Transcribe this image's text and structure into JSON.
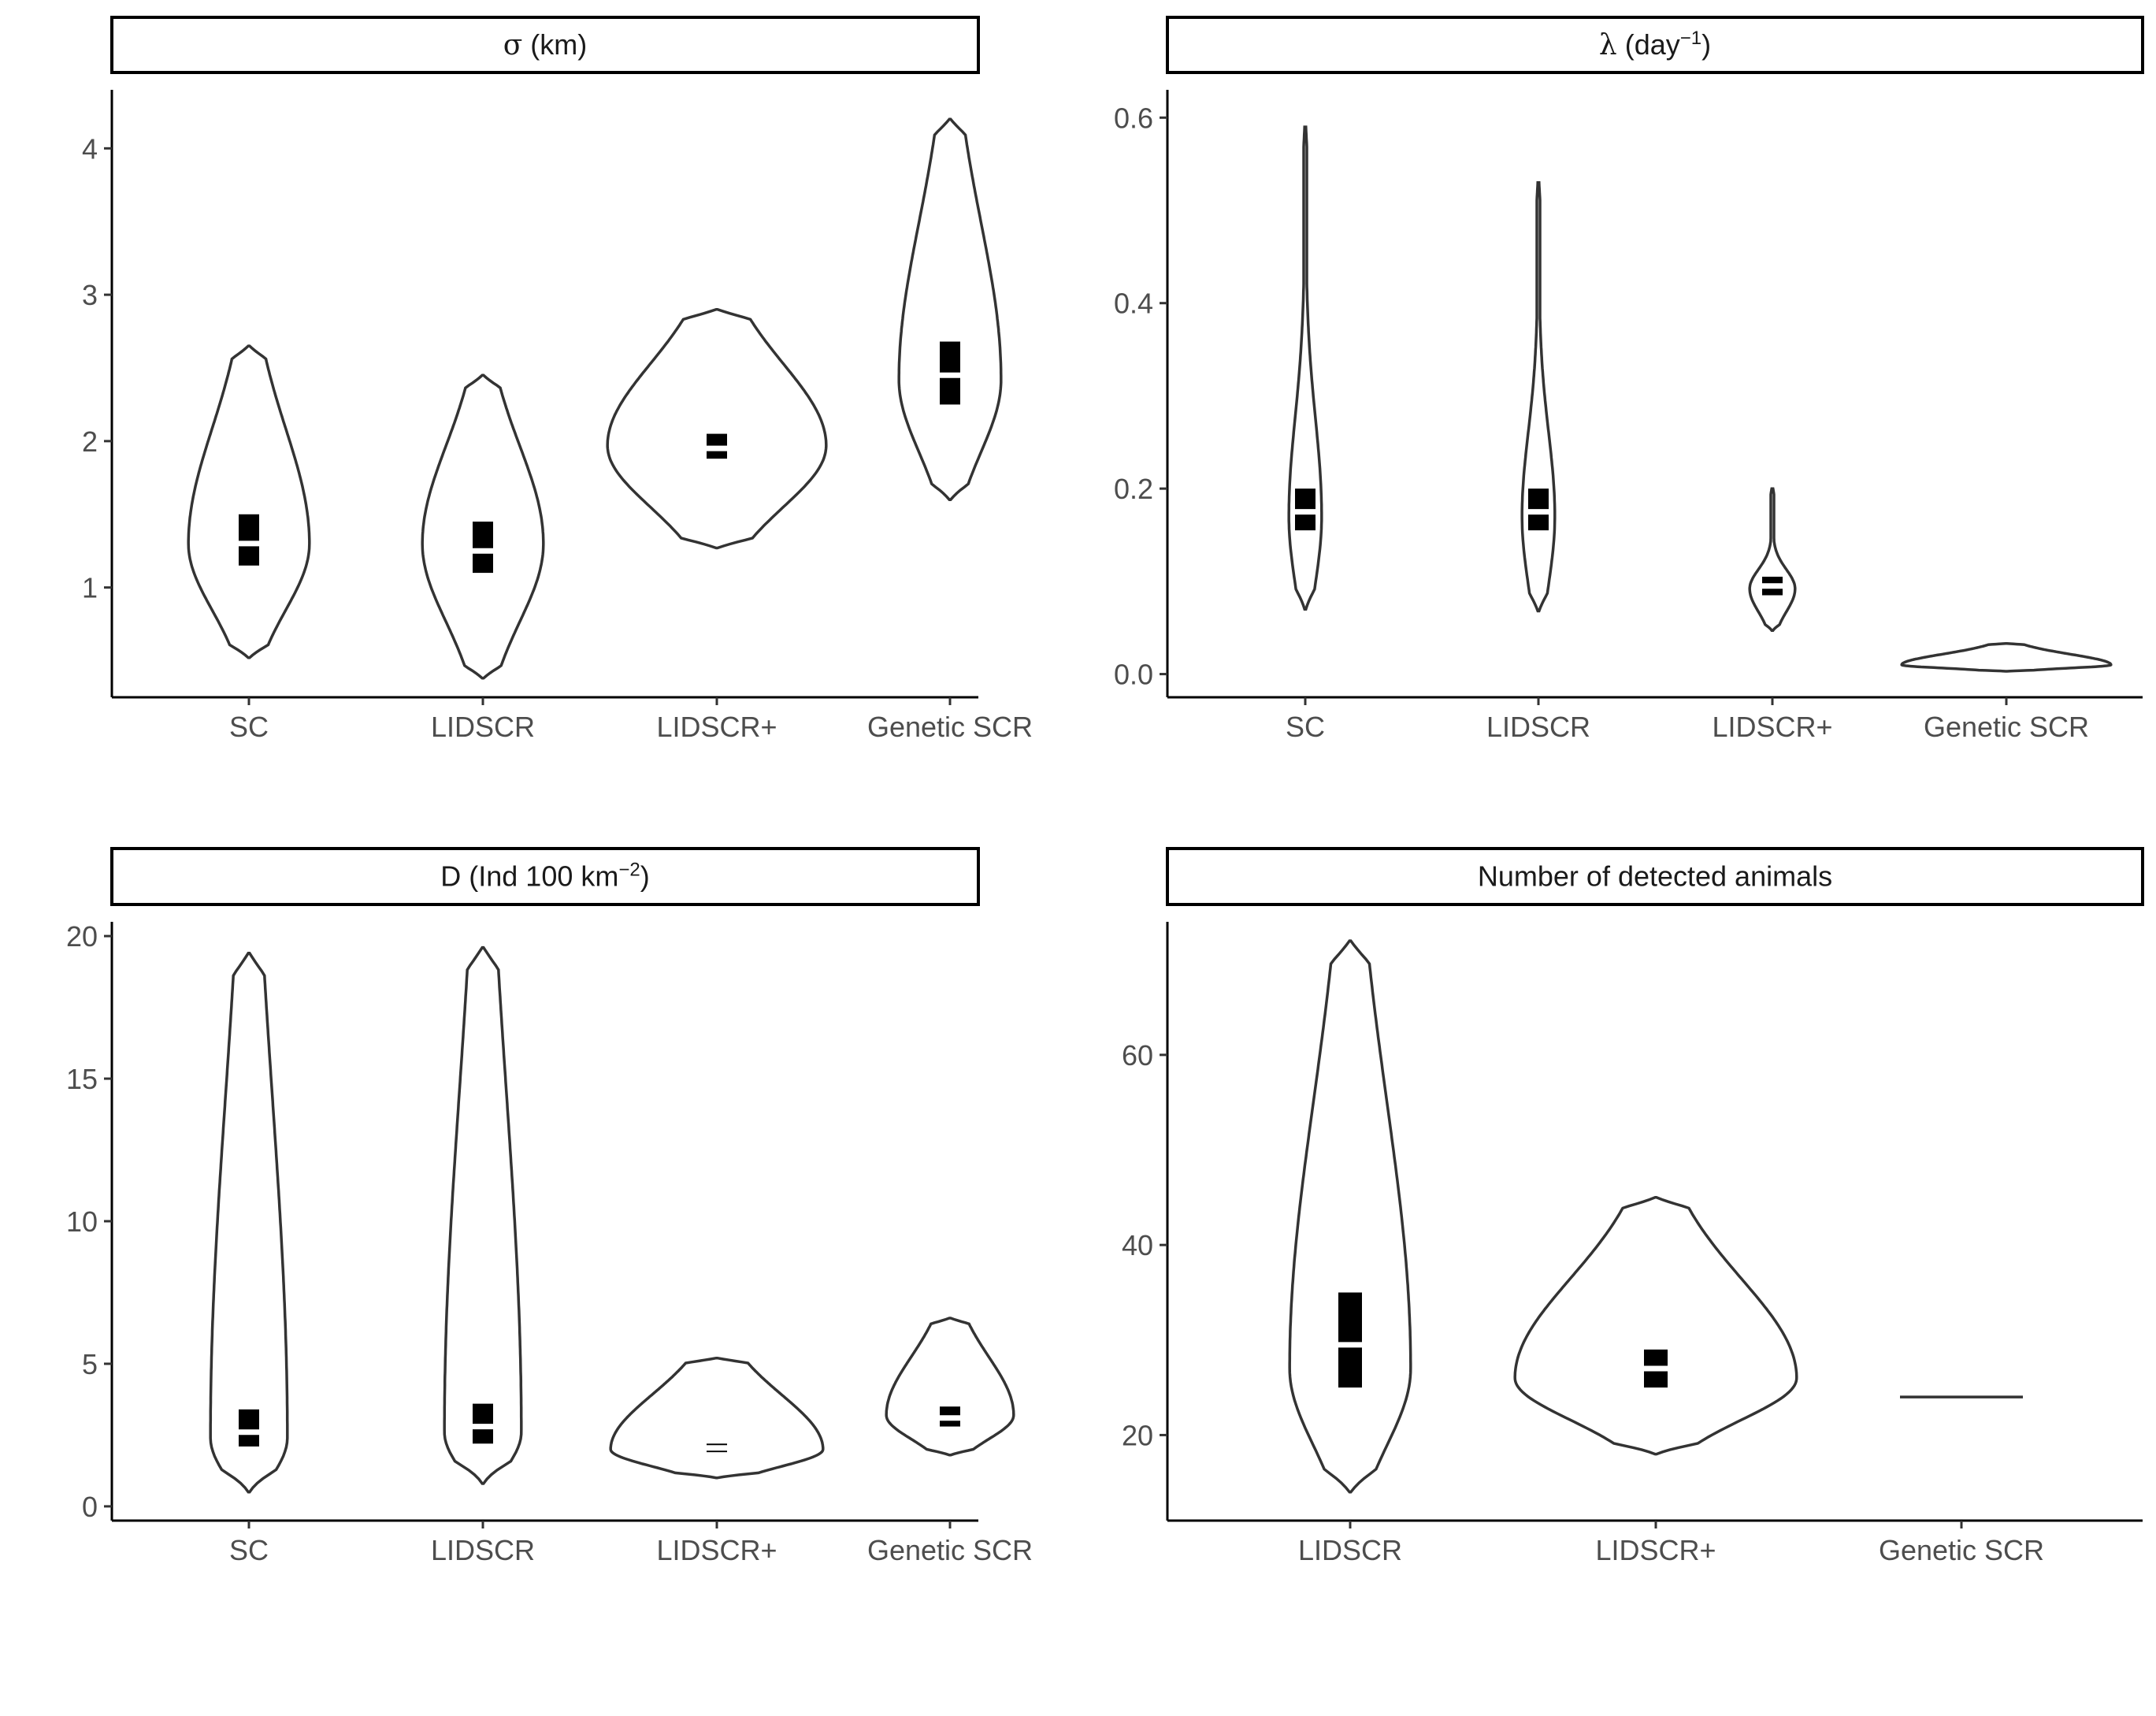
{
  "chart_data": [
    {
      "type": "violin",
      "title_parts": [
        {
          "text": "σ",
          "greek": true
        },
        {
          "text": " (km)"
        }
      ],
      "categories": [
        "SC",
        "LIDSCR",
        "LIDSCR+",
        "Genetic SCR"
      ],
      "ylim": [
        0.25,
        4.4
      ],
      "yticks": [
        1,
        2,
        3,
        4
      ],
      "series": [
        {
          "min": 0.52,
          "max": 2.65,
          "mode": 1.3,
          "q1": 1.15,
          "median": 1.3,
          "q3": 1.5,
          "spread": 0.5,
          "tail": 0.58
        },
        {
          "min": 0.38,
          "max": 2.45,
          "mode": 1.3,
          "q1": 1.1,
          "median": 1.25,
          "q3": 1.45,
          "spread": 0.45,
          "tail": 0.58
        },
        {
          "min": 1.27,
          "max": 2.9,
          "mode": 1.97,
          "q1": 1.88,
          "median": 1.95,
          "q3": 2.05,
          "spread": 0.97,
          "tail": 0.6
        },
        {
          "min": 1.6,
          "max": 4.2,
          "mode": 2.42,
          "q1": 2.25,
          "median": 2.45,
          "q3": 2.68,
          "spread": 0.42,
          "tail": 0.6
        }
      ],
      "grid": false
    },
    {
      "type": "violin",
      "title_parts": [
        {
          "text": "λ",
          "greek": true
        },
        {
          "text": " (day"
        },
        {
          "text": "−1",
          "sup": true
        },
        {
          "text": ")"
        }
      ],
      "categories": [
        "SC",
        "LIDSCR",
        "LIDSCR+",
        "Genetic SCR"
      ],
      "ylim": [
        -0.025,
        0.63
      ],
      "yticks": [
        0.0,
        0.2,
        0.4,
        0.6
      ],
      "yticklabels": [
        "0.0",
        "0.2",
        "0.4",
        "0.6"
      ],
      "series": [
        {
          "min": 0.07,
          "max": 0.59,
          "mode": 0.17,
          "q1": 0.155,
          "median": 0.175,
          "q3": 0.2,
          "spread": 0.07,
          "tail": 0.72
        },
        {
          "min": 0.068,
          "max": 0.53,
          "mode": 0.17,
          "q1": 0.155,
          "median": 0.175,
          "q3": 0.2,
          "spread": 0.07,
          "tail": 0.72
        },
        {
          "min": 0.047,
          "max": 0.2,
          "mode": 0.092,
          "q1": 0.085,
          "median": 0.095,
          "q3": 0.105,
          "spread": 0.2,
          "tail": 0.55
        },
        {
          "min": 0.003,
          "max": 0.033,
          "mode": 0.01,
          "q1": null,
          "median": null,
          "q3": null,
          "spread": 0.95,
          "tail": 0.5
        }
      ],
      "grid": false
    },
    {
      "type": "violin",
      "title_parts": [
        {
          "text": "D (Ind 100 km"
        },
        {
          "text": "−2",
          "sup": true
        },
        {
          "text": ")"
        }
      ],
      "categories": [
        "SC",
        "LIDSCR",
        "LIDSCR+",
        "Genetic SCR"
      ],
      "ylim": [
        -0.5,
        20.5
      ],
      "yticks": [
        0,
        5,
        10,
        15,
        20
      ],
      "series": [
        {
          "min": 0.5,
          "max": 19.4,
          "mode": 2.4,
          "q1": 2.1,
          "median": 2.6,
          "q3": 3.4,
          "spread": 0.32,
          "tail": 0.7
        },
        {
          "min": 0.8,
          "max": 19.6,
          "mode": 2.6,
          "q1": 2.2,
          "median": 2.8,
          "q3": 3.6,
          "spread": 0.33,
          "tail": 0.7
        },
        {
          "min": 1.0,
          "max": 5.2,
          "mode": 2.0,
          "q1": 1.9,
          "median": 2.05,
          "q3": 2.2,
          "spread": 0.9,
          "tail": 0.6
        },
        {
          "min": 1.8,
          "max": 6.6,
          "mode": 3.2,
          "q1": 2.8,
          "median": 3.1,
          "q3": 3.5,
          "spread": 0.6,
          "tail": 0.6
        }
      ],
      "grid": false
    },
    {
      "type": "violin",
      "title_parts": [
        {
          "text": "Number of detected animals"
        }
      ],
      "categories": [
        "LIDSCR",
        "LIDSCR+",
        "Genetic SCR"
      ],
      "ylim": [
        11,
        74
      ],
      "yticks": [
        20,
        40,
        60
      ],
      "series": [
        {
          "min": 14,
          "max": 72,
          "mode": 27,
          "q1": 25,
          "median": 29.5,
          "q3": 35,
          "spread": 0.42,
          "tail": 0.62
        },
        {
          "min": 18,
          "max": 45,
          "mode": 26,
          "q1": 25,
          "median": 27,
          "q3": 29,
          "spread": 0.9,
          "tail": 0.55
        },
        {
          "min": 24,
          "max": 24,
          "mode": 24,
          "q1": null,
          "median": null,
          "q3": null,
          "spread": 0.0,
          "tail": 0.5
        }
      ],
      "grid": false
    }
  ]
}
